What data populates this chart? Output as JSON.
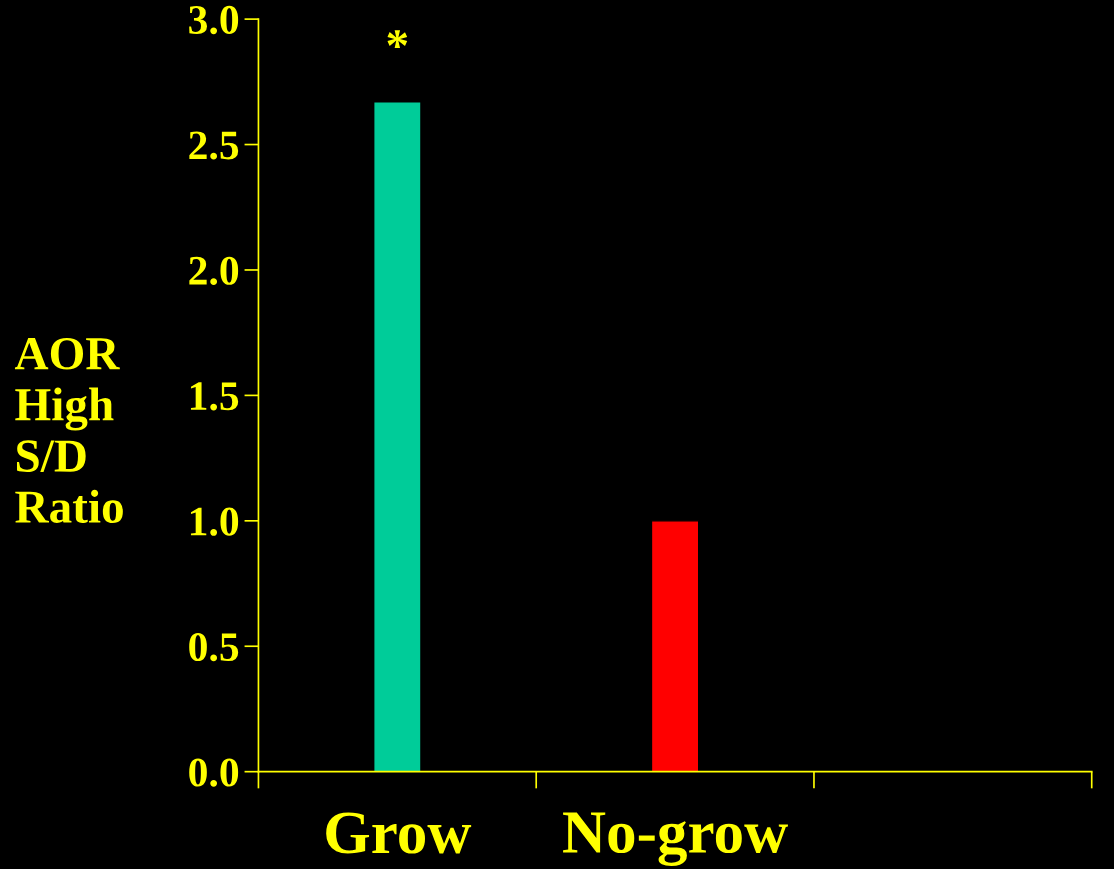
{
  "chart_data": {
    "type": "bar",
    "ylabel": "AOR\nHigh\nS/D\nRatio",
    "categories": [
      "Grow",
      "No-grow",
      null
    ],
    "values": [
      2.67,
      1.0,
      null
    ],
    "colors": [
      "#00cc99",
      "#ff0000",
      "#808080"
    ],
    "ylim": [
      0,
      3
    ],
    "yticks": [
      {
        "value": 0,
        "label": "0.0"
      },
      {
        "value": 0.5,
        "label": "0.5"
      },
      {
        "value": 1,
        "label": "1.0"
      },
      {
        "value": 1.5,
        "label": "1.5"
      },
      {
        "value": 2,
        "label": "2.0"
      },
      {
        "value": 2.5,
        "label": "2.5"
      },
      {
        "value": 3,
        "label": "3.0"
      }
    ],
    "grid": false,
    "legend": false,
    "annotations": [
      {
        "text": "*",
        "x": "Grow",
        "y": 2.67
      }
    ]
  }
}
